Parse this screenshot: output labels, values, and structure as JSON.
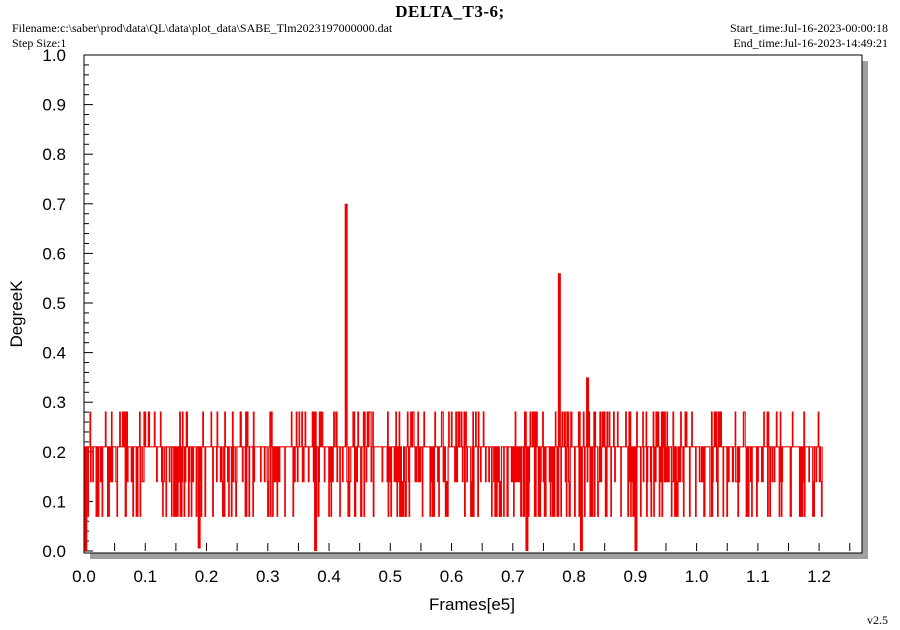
{
  "header": {
    "title": "DELTA_T3-6;",
    "filename": "Filename:c:\\saber\\prod\\data\\QL\\data\\plot_data\\SABE_Tlm2023197000000.dat",
    "step_size": "Step Size:1",
    "start_time": "Start_time:Jul-16-2023-00:00:18",
    "end_time": "End_time:Jul-16-2023-14:49:21",
    "version": "v2.5"
  },
  "colors": {
    "series": "#ee0000",
    "shadow": "#a0a0a0"
  },
  "chart_data": {
    "type": "line",
    "title": "DELTA_T3-6;",
    "xlabel": "Frames[e5]",
    "ylabel": "DegreeK",
    "xlim": [
      0,
      1.27
    ],
    "ylim": [
      0,
      1.0
    ],
    "x_ticks": [
      "0.0",
      "0.1",
      "0.2",
      "0.3",
      "0.4",
      "0.5",
      "0.6",
      "0.7",
      "0.8",
      "0.9",
      "1.0",
      "1.1",
      "1.2"
    ],
    "y_ticks": [
      "0.0",
      "0.1",
      "0.2",
      "0.3",
      "0.4",
      "0.5",
      "0.6",
      "0.7",
      "0.8",
      "0.9",
      "1.0"
    ],
    "series": [
      {
        "x_range": [
          0,
          1.205
        ],
        "levels": [
          0.07,
          0.14,
          0.21,
          0.28
        ],
        "baseline": 0.21,
        "spikes": [
          {
            "x": 0.003,
            "y": 0.0
          },
          {
            "x": 0.188,
            "y": 0.005
          },
          {
            "x": 0.378,
            "y": 0.0
          },
          {
            "x": 0.428,
            "y": 0.7
          },
          {
            "x": 0.723,
            "y": 0.0
          },
          {
            "x": 0.776,
            "y": 0.56
          },
          {
            "x": 0.812,
            "y": 0.0
          },
          {
            "x": 0.822,
            "y": 0.35
          },
          {
            "x": 0.901,
            "y": 0.0
          }
        ]
      }
    ]
  }
}
